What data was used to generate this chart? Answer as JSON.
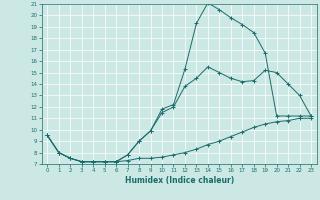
{
  "xlabel": "Humidex (Indice chaleur)",
  "bg_color": "#cce8e4",
  "line_color": "#1a6b6b",
  "grid_color": "#b0d8d0",
  "xlim": [
    -0.5,
    23.5
  ],
  "ylim": [
    7,
    21
  ],
  "xticks": [
    0,
    1,
    2,
    3,
    4,
    5,
    6,
    7,
    8,
    9,
    10,
    11,
    12,
    13,
    14,
    15,
    16,
    17,
    18,
    19,
    20,
    21,
    22,
    23
  ],
  "yticks": [
    7,
    8,
    9,
    10,
    11,
    12,
    13,
    14,
    15,
    16,
    17,
    18,
    19,
    20,
    21
  ],
  "line1_x": [
    0,
    1,
    2,
    3,
    4,
    5,
    6,
    7,
    8,
    9,
    10,
    11,
    12,
    13,
    14,
    15,
    16,
    17,
    18,
    19,
    20,
    21,
    22,
    23
  ],
  "line1_y": [
    9.5,
    8.0,
    7.5,
    7.2,
    7.2,
    7.2,
    7.2,
    7.3,
    7.5,
    7.5,
    7.6,
    7.8,
    8.0,
    8.3,
    8.7,
    9.0,
    9.4,
    9.8,
    10.2,
    10.5,
    10.7,
    10.8,
    11.0,
    11.0
  ],
  "line2_x": [
    0,
    1,
    2,
    3,
    4,
    5,
    6,
    7,
    8,
    9,
    10,
    11,
    12,
    13,
    14,
    15,
    16,
    17,
    18,
    19,
    20,
    21,
    22,
    23
  ],
  "line2_y": [
    9.5,
    8.0,
    7.5,
    7.2,
    7.2,
    7.2,
    7.2,
    7.8,
    9.0,
    9.9,
    11.8,
    12.2,
    15.3,
    19.3,
    21.1,
    20.5,
    19.8,
    19.2,
    18.5,
    16.7,
    11.2,
    11.2,
    11.2,
    11.2
  ],
  "line3_x": [
    0,
    1,
    2,
    3,
    4,
    5,
    6,
    7,
    8,
    9,
    10,
    11,
    12,
    13,
    14,
    15,
    16,
    17,
    18,
    19,
    20,
    21,
    22,
    23
  ],
  "line3_y": [
    9.5,
    8.0,
    7.5,
    7.2,
    7.2,
    7.2,
    7.2,
    7.8,
    9.0,
    9.9,
    11.5,
    12.0,
    13.8,
    14.5,
    15.5,
    15.0,
    14.5,
    14.2,
    14.3,
    15.2,
    15.0,
    14.0,
    13.0,
    11.2
  ]
}
